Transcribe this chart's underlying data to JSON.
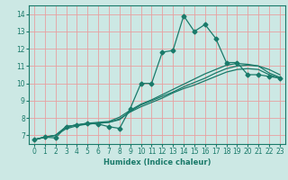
{
  "title": "",
  "xlabel": "Humidex (Indice chaleur)",
  "xlim": [
    -0.5,
    23.5
  ],
  "ylim": [
    6.5,
    14.5
  ],
  "xticks": [
    0,
    1,
    2,
    3,
    4,
    5,
    6,
    7,
    8,
    9,
    10,
    11,
    12,
    13,
    14,
    15,
    16,
    17,
    18,
    19,
    20,
    21,
    22,
    23
  ],
  "yticks": [
    7,
    8,
    9,
    10,
    11,
    12,
    13,
    14
  ],
  "bg_color": "#cce8e4",
  "grid_color": "#e8a0a0",
  "line_color": "#1a7a6a",
  "line1_x": [
    0,
    1,
    2,
    3,
    4,
    5,
    6,
    7,
    8,
    9,
    10,
    11,
    12,
    13,
    14,
    15,
    16,
    17,
    18,
    19,
    20,
    21,
    22,
    23
  ],
  "line1_y": [
    6.75,
    6.9,
    6.85,
    7.5,
    7.6,
    7.7,
    7.65,
    7.5,
    7.4,
    8.55,
    10.0,
    10.0,
    11.8,
    11.9,
    13.9,
    13.0,
    13.4,
    12.6,
    11.2,
    11.2,
    10.5,
    10.5,
    10.4,
    10.3
  ],
  "line2_x": [
    0,
    1,
    2,
    3,
    4,
    5,
    6,
    7,
    8,
    9,
    10,
    11,
    12,
    13,
    14,
    15,
    16,
    17,
    18,
    19,
    20,
    21,
    22,
    23
  ],
  "line2_y": [
    6.75,
    6.9,
    7.0,
    7.5,
    7.6,
    7.65,
    7.7,
    7.75,
    7.9,
    8.4,
    8.75,
    9.0,
    9.25,
    9.5,
    9.8,
    10.05,
    10.3,
    10.6,
    10.85,
    11.0,
    11.05,
    11.0,
    10.8,
    10.5
  ],
  "line3_x": [
    0,
    1,
    2,
    3,
    4,
    5,
    6,
    7,
    8,
    9,
    10,
    11,
    12,
    13,
    14,
    15,
    16,
    17,
    18,
    19,
    20,
    21,
    22,
    23
  ],
  "line3_y": [
    6.75,
    6.9,
    7.0,
    7.5,
    7.6,
    7.7,
    7.75,
    7.8,
    8.05,
    8.45,
    8.8,
    9.05,
    9.35,
    9.65,
    9.95,
    10.25,
    10.55,
    10.8,
    11.05,
    11.15,
    11.1,
    11.0,
    10.6,
    10.35
  ],
  "line4_x": [
    0,
    1,
    2,
    3,
    4,
    5,
    6,
    7,
    8,
    9,
    10,
    11,
    12,
    13,
    14,
    15,
    16,
    17,
    18,
    19,
    20,
    21,
    22,
    23
  ],
  "line4_y": [
    6.75,
    6.88,
    7.0,
    7.38,
    7.55,
    7.65,
    7.7,
    7.75,
    7.95,
    8.35,
    8.65,
    8.9,
    9.15,
    9.45,
    9.7,
    9.9,
    10.15,
    10.4,
    10.65,
    10.8,
    10.85,
    10.8,
    10.5,
    10.3
  ],
  "marker": "D",
  "markersize": 2.5,
  "linewidth": 0.9,
  "xlabel_fontsize": 6,
  "tick_fontsize": 5.5
}
